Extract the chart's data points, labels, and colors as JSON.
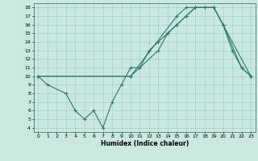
{
  "line1": {
    "x": [
      0,
      1,
      3,
      4,
      5,
      6,
      7,
      8,
      9,
      10,
      11,
      12,
      13,
      14,
      15,
      16,
      17,
      18,
      19,
      20,
      21,
      22,
      23
    ],
    "y": [
      10,
      9,
      8,
      6,
      5,
      6,
      4,
      7,
      9,
      11,
      11,
      13,
      14,
      15,
      16,
      17,
      18,
      18,
      18,
      16,
      13,
      11,
      10
    ]
  },
  "line2": {
    "x": [
      0,
      10,
      15,
      16,
      17,
      18,
      19,
      20,
      22,
      23
    ],
    "y": [
      10,
      10,
      17,
      18,
      18,
      18,
      18,
      16,
      11,
      10
    ]
  },
  "line3": {
    "x": [
      0,
      10,
      13,
      14,
      15,
      16,
      17,
      19,
      20,
      23
    ],
    "y": [
      10,
      10,
      13,
      15,
      16,
      17,
      18,
      18,
      16,
      10
    ]
  },
  "color": "#2d7a6e",
  "bg_color": "#c8e8e0",
  "grid_color": "#9ecdc4",
  "xlabel": "Humidex (Indice chaleur)",
  "xlim": [
    -0.5,
    23.5
  ],
  "ylim": [
    3.5,
    18.5
  ],
  "xticks": [
    0,
    1,
    2,
    3,
    4,
    5,
    6,
    7,
    8,
    9,
    10,
    11,
    12,
    13,
    14,
    15,
    16,
    17,
    18,
    19,
    20,
    21,
    22,
    23
  ],
  "yticks": [
    4,
    5,
    6,
    7,
    8,
    9,
    10,
    11,
    12,
    13,
    14,
    15,
    16,
    17,
    18
  ],
  "marker": "+",
  "markersize": 3,
  "linewidth": 0.8,
  "tick_fontsize": 4.5,
  "xlabel_fontsize": 5.5
}
